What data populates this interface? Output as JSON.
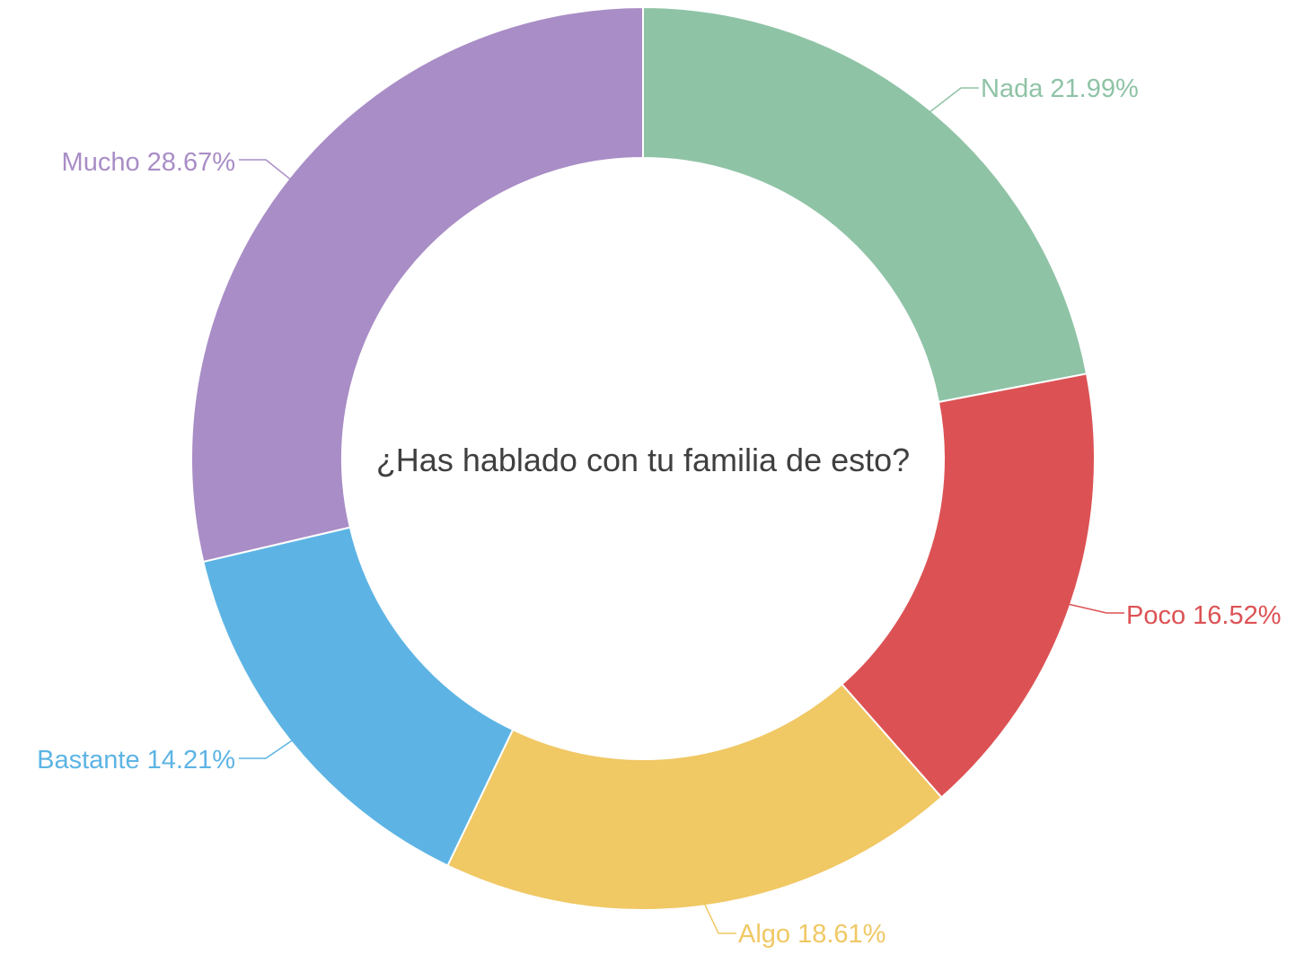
{
  "chart_data": {
    "type": "pie",
    "variant": "donut",
    "title": "¿Has hablado con tu familia de esto?",
    "unit": "%",
    "legend": "none",
    "data_labels": "outside-with-leader-lines",
    "slices": [
      {
        "label": "Nada",
        "value": 21.99,
        "display": "Nada 21.99%",
        "color": "#8fc3a6"
      },
      {
        "label": "Poco",
        "value": 16.52,
        "display": "Poco 16.52%",
        "color": "#dc5254"
      },
      {
        "label": "Algo",
        "value": 18.61,
        "display": "Algo 18.61%",
        "color": "#f0c864"
      },
      {
        "label": "Bastante",
        "value": 14.21,
        "display": "Bastante 14.21%",
        "color": "#5db4e4"
      },
      {
        "label": "Mucho",
        "value": 28.67,
        "display": "Mucho 28.67%",
        "color": "#a98dc6"
      }
    ]
  }
}
